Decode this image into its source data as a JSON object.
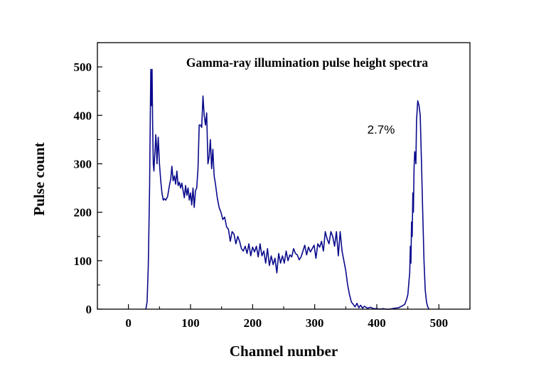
{
  "chart_data": {
    "type": "line",
    "title": "Gamma-ray illumination pulse height spectra",
    "xlabel": "Channel number",
    "ylabel": "Pulse count",
    "xlim": [
      -50,
      550
    ],
    "ylim": [
      0,
      550
    ],
    "xticks": [
      0,
      100,
      200,
      300,
      400,
      500
    ],
    "xtick_labels": [
      "0",
      "100",
      "200",
      "300",
      "400",
      "500"
    ],
    "yticks": [
      0,
      100,
      200,
      300,
      400,
      500
    ],
    "ytick_labels": [
      "0",
      "100",
      "200",
      "300",
      "400",
      "500"
    ],
    "grid": false,
    "annotations": [
      {
        "text": "2.7%",
        "x": 405,
        "y": 370
      }
    ],
    "series": [
      {
        "name": "Pulse height spectrum",
        "color": "#0a0a8c",
        "x": [
          28,
          30,
          32,
          34,
          35,
          36,
          37,
          38,
          39,
          40,
          41,
          42,
          43,
          44,
          45,
          46,
          48,
          50,
          52,
          54,
          56,
          58,
          60,
          63,
          66,
          68,
          70,
          72,
          74,
          76,
          78,
          80,
          82,
          84,
          86,
          88,
          90,
          92,
          94,
          96,
          98,
          100,
          102,
          104,
          106,
          108,
          110,
          112,
          114,
          116,
          118,
          120,
          122,
          124,
          126,
          128,
          130,
          132,
          134,
          136,
          138,
          140,
          143,
          146,
          149,
          152,
          155,
          158,
          161,
          164,
          167,
          170,
          173,
          176,
          179,
          182,
          185,
          188,
          191,
          194,
          197,
          200,
          203,
          206,
          209,
          212,
          215,
          218,
          221,
          224,
          227,
          230,
          233,
          236,
          239,
          242,
          245,
          248,
          251,
          254,
          257,
          260,
          263,
          266,
          269,
          272,
          275,
          278,
          281,
          284,
          287,
          290,
          293,
          296,
          299,
          302,
          305,
          308,
          311,
          314,
          317,
          320,
          323,
          326,
          329,
          332,
          335,
          338,
          341,
          344,
          347,
          350,
          353,
          356,
          359,
          362,
          365,
          368,
          371,
          374,
          377,
          380,
          385,
          390,
          395,
          400,
          405,
          410,
          415,
          420,
          425,
          430,
          435,
          440,
          445,
          448,
          450,
          452,
          453,
          454,
          455,
          456,
          457,
          458,
          459,
          460,
          461,
          462,
          463,
          464,
          466,
          468,
          470,
          472,
          474,
          476,
          478,
          480,
          482,
          484
        ],
        "y": [
          0,
          15,
          90,
          250,
          370,
          495,
          420,
          495,
          380,
          300,
          285,
          310,
          330,
          360,
          340,
          300,
          355,
          300,
          265,
          240,
          225,
          228,
          225,
          232,
          255,
          268,
          295,
          265,
          275,
          258,
          285,
          255,
          262,
          250,
          260,
          245,
          230,
          255,
          235,
          250,
          225,
          240,
          215,
          250,
          210,
          245,
          250,
          290,
          380,
          380,
          375,
          440,
          400,
          380,
          405,
          300,
          315,
          350,
          290,
          330,
          275,
          260,
          230,
          210,
          200,
          185,
          190,
          170,
          165,
          140,
          160,
          155,
          135,
          150,
          140,
          125,
          120,
          130,
          115,
          135,
          110,
          128,
          118,
          130,
          108,
          135,
          110,
          120,
          95,
          125,
          90,
          110,
          92,
          105,
          75,
          115,
          95,
          110,
          95,
          120,
          100,
          112,
          108,
          125,
          115,
          112,
          102,
          108,
          120,
          132,
          112,
          128,
          118,
          125,
          132,
          105,
          135,
          128,
          140,
          120,
          160,
          145,
          135,
          160,
          150,
          130,
          160,
          110,
          160,
          120,
          100,
          80,
          50,
          30,
          15,
          10,
          5,
          12,
          3,
          8,
          2,
          6,
          2,
          4,
          1,
          1,
          0,
          1,
          0,
          0,
          1,
          2,
          3,
          6,
          10,
          20,
          30,
          60,
          75,
          130,
          95,
          180,
          150,
          240,
          200,
          290,
          325,
          318,
          300,
          390,
          430,
          420,
          400,
          300,
          200,
          100,
          40,
          15,
          5,
          0
        ]
      }
    ]
  }
}
